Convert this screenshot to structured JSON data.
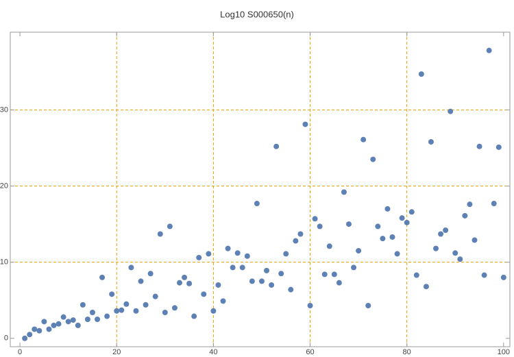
{
  "chart_data": {
    "type": "scatter",
    "title": "Log10 S000650(n)",
    "x": [
      1,
      2,
      3,
      4,
      5,
      6,
      7,
      8,
      9,
      10,
      11,
      12,
      13,
      14,
      15,
      16,
      17,
      18,
      19,
      20,
      21,
      22,
      23,
      24,
      25,
      26,
      27,
      28,
      29,
      30,
      31,
      32,
      33,
      34,
      35,
      36,
      37,
      38,
      39,
      40,
      41,
      42,
      43,
      44,
      45,
      46,
      47,
      48,
      49,
      50,
      51,
      52,
      53,
      54,
      55,
      56,
      57,
      58,
      59,
      60,
      61,
      62,
      63,
      64,
      65,
      66,
      67,
      68,
      69,
      70,
      71,
      72,
      73,
      74,
      75,
      76,
      77,
      78,
      79,
      80,
      81,
      82,
      83,
      84,
      85,
      86,
      87,
      88,
      89,
      90,
      91,
      92,
      93,
      94,
      95,
      96,
      97,
      98,
      99,
      100
    ],
    "values": [
      0,
      0.5,
      1.2,
      1.0,
      2.2,
      1.2,
      1.7,
      1.9,
      2.8,
      2.2,
      2.4,
      1.7,
      4.4,
      2.5,
      3.4,
      2.5,
      8.0,
      2.9,
      5.8,
      3.6,
      3.7,
      4.5,
      9.3,
      3.6,
      7.5,
      4.4,
      8.5,
      5.5,
      13.7,
      3.4,
      14.7,
      4.0,
      7.3,
      8.0,
      7.2,
      2.9,
      10.6,
      5.8,
      11.1,
      3.6,
      7.0,
      4.9,
      11.8,
      9.3,
      11.2,
      9.3,
      10.8,
      7.5,
      17.7,
      7.5,
      8.9,
      7.0,
      25.2,
      8.5,
      11.1,
      6.4,
      12.8,
      13.7,
      28.1,
      4.3,
      15.7,
      14.7,
      8.4,
      12.1,
      8.4,
      7.3,
      19.2,
      15.0,
      9.3,
      11.5,
      26.1,
      4.3,
      23.5,
      14.7,
      13.1,
      17.0,
      13.3,
      11.1,
      15.8,
      15.2,
      16.6,
      8.3,
      34.7,
      6.8,
      25.8,
      11.8,
      13.7,
      14.2,
      29.8,
      11.2,
      10.4,
      16.1,
      17.6,
      12.9,
      25.2,
      8.3,
      37.8,
      17.7,
      25.1,
      8.0
    ],
    "color": "#5e81b5",
    "xlim": [
      -2,
      101.3
    ],
    "ylim": [
      -1.1,
      40.2
    ],
    "xticks": [
      0,
      20,
      40,
      60,
      80,
      100
    ],
    "yticks": [
      0,
      10,
      20,
      30
    ],
    "grid_x": [
      20,
      40,
      60,
      80
    ],
    "grid_y": [
      10,
      20,
      30
    ],
    "grid_color": "#e69f00"
  }
}
